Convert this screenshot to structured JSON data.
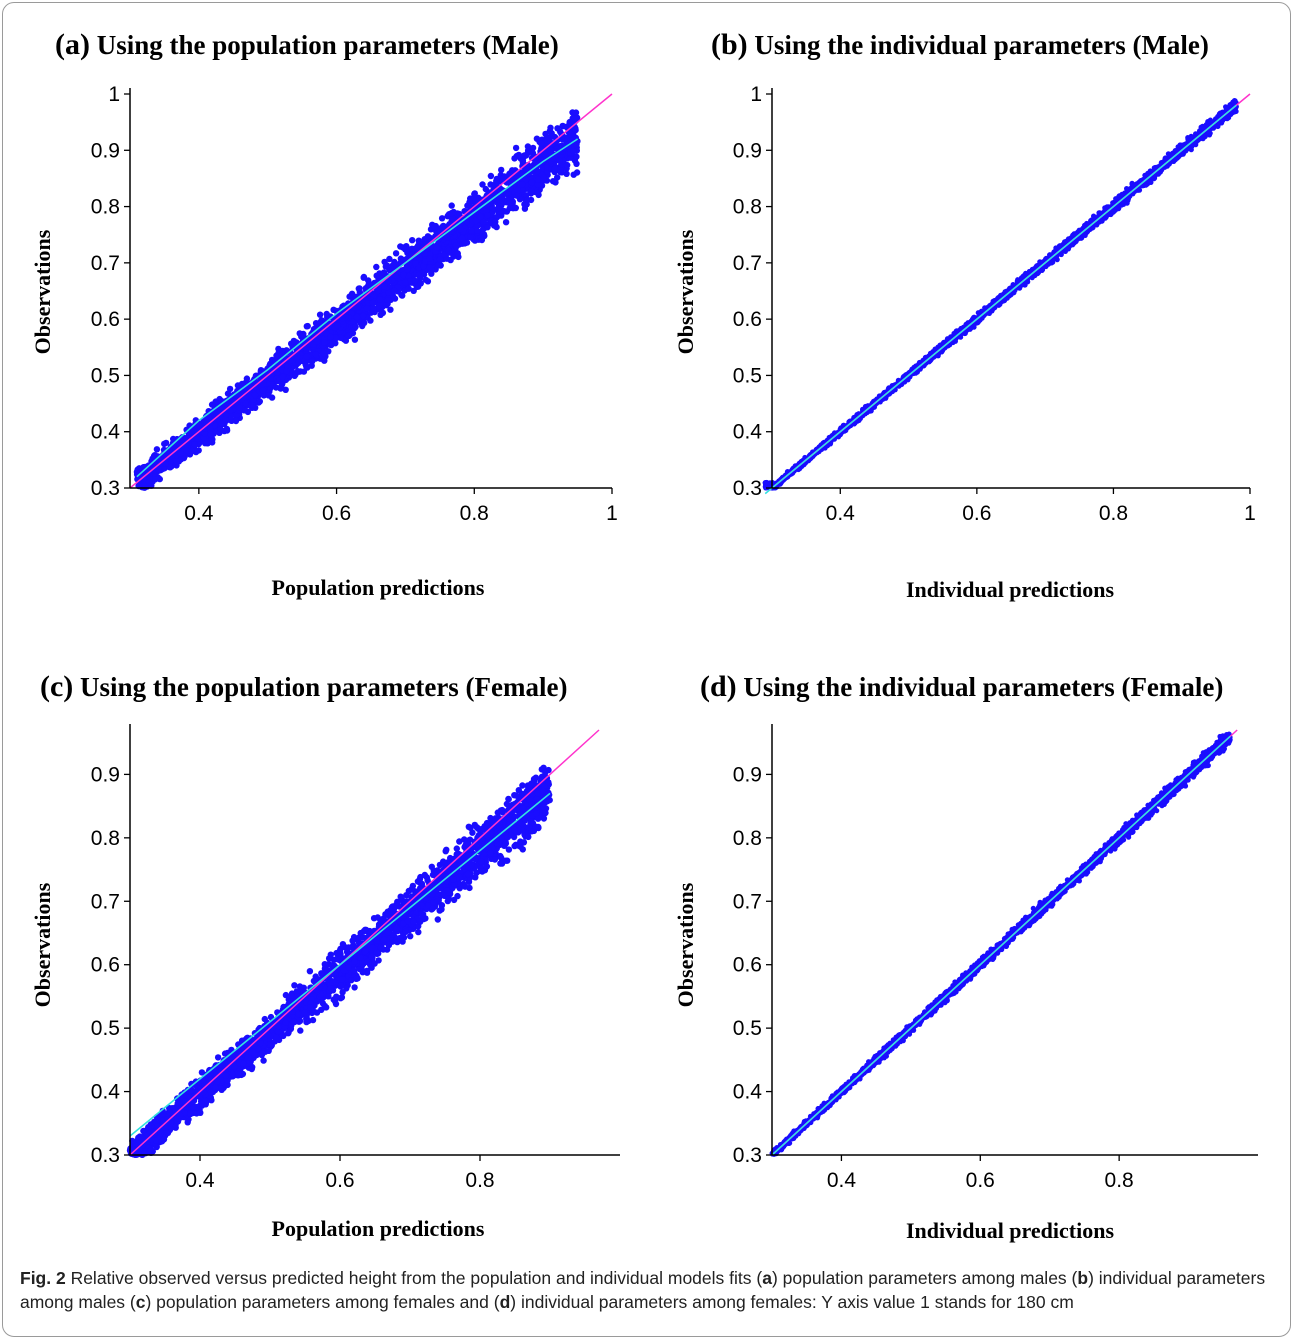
{
  "caption": {
    "fig_label": "Fig. 2",
    "segments": [
      {
        "t": " Relative observed versus predicted height from the population and individual models fits ("
      },
      {
        "t": "a",
        "b": true
      },
      {
        "t": ") population parameters among males ("
      },
      {
        "t": "b",
        "b": true
      },
      {
        "t": ") individual parameters among males ("
      },
      {
        "t": "c",
        "b": true
      },
      {
        "t": ") population parameters among females and ("
      },
      {
        "t": "d",
        "b": true
      },
      {
        "t": ") individual parameters among females: Y axis value 1 stands for 180 cm"
      }
    ]
  },
  "colors": {
    "points": "#1a0dff",
    "identity_line": "#ff33cc",
    "smooth_line": "#33e0e0",
    "axis": "#000000"
  },
  "chart_data": [
    {
      "id": "a",
      "type": "scatter",
      "label": "(a)",
      "title": "Using the population parameters (Male)",
      "xlabel": "Population predictions",
      "ylabel": "Observations",
      "xlim": [
        0.3,
        1.0
      ],
      "ylim": [
        0.3,
        1.0
      ],
      "xticks": [
        0.4,
        0.6,
        0.8,
        1
      ],
      "yticks": [
        0.3,
        0.4,
        0.5,
        0.6,
        0.7,
        0.8,
        0.9,
        1
      ],
      "series": [
        {
          "kind": "points",
          "x_range": [
            0.31,
            0.95
          ],
          "spread": 0.055
        },
        {
          "kind": "identity",
          "x": [
            0.3,
            1.0
          ],
          "y": [
            0.3,
            1.0
          ]
        },
        {
          "kind": "smooth",
          "x": [
            0.31,
            0.4,
            0.5,
            0.6,
            0.7,
            0.8,
            0.9,
            0.95
          ],
          "y": [
            0.32,
            0.42,
            0.51,
            0.61,
            0.7,
            0.79,
            0.88,
            0.92
          ]
        }
      ]
    },
    {
      "id": "b",
      "type": "scatter",
      "label": "(b)",
      "title": "Using the individual parameters (Male)",
      "xlabel": "Individual predictions",
      "ylabel": "Observations",
      "xlim": [
        0.3,
        1.0
      ],
      "ylim": [
        0.3,
        1.0
      ],
      "xticks": [
        0.4,
        0.6,
        0.8,
        1
      ],
      "yticks": [
        0.3,
        0.4,
        0.5,
        0.6,
        0.7,
        0.8,
        0.9,
        1
      ],
      "series": [
        {
          "kind": "points",
          "x_range": [
            0.29,
            0.98
          ],
          "spread": 0.012
        },
        {
          "kind": "identity",
          "x": [
            0.3,
            1.0
          ],
          "y": [
            0.3,
            1.0
          ]
        },
        {
          "kind": "smooth",
          "x": [
            0.29,
            0.5,
            0.7,
            0.98
          ],
          "y": [
            0.29,
            0.5,
            0.7,
            0.98
          ]
        }
      ]
    },
    {
      "id": "c",
      "type": "scatter",
      "label": "(c)",
      "title": "Using the population parameters (Female)",
      "xlabel": "Population predictions",
      "ylabel": "Observations",
      "xlim": [
        0.3,
        1.0
      ],
      "ylim": [
        0.3,
        0.97
      ],
      "xticks": [
        0.4,
        0.6,
        0.8
      ],
      "yticks": [
        0.3,
        0.4,
        0.5,
        0.6,
        0.7,
        0.8,
        0.9
      ],
      "series": [
        {
          "kind": "points",
          "x_range": [
            0.3,
            0.9
          ],
          "spread": 0.05
        },
        {
          "kind": "identity",
          "x": [
            0.3,
            1.0
          ],
          "y": [
            0.3,
            1.0
          ]
        },
        {
          "kind": "smooth",
          "x": [
            0.3,
            0.4,
            0.5,
            0.6,
            0.7,
            0.8,
            0.9
          ],
          "y": [
            0.33,
            0.42,
            0.51,
            0.6,
            0.69,
            0.78,
            0.87
          ]
        }
      ]
    },
    {
      "id": "d",
      "type": "scatter",
      "label": "(d)",
      "title": "Using the individual parameters (Female)",
      "xlabel": "Individual predictions",
      "ylabel": "Observations",
      "xlim": [
        0.3,
        1.0
      ],
      "ylim": [
        0.3,
        0.97
      ],
      "xticks": [
        0.4,
        0.6,
        0.8
      ],
      "yticks": [
        0.3,
        0.4,
        0.5,
        0.6,
        0.7,
        0.8,
        0.9
      ],
      "series": [
        {
          "kind": "points",
          "x_range": [
            0.3,
            0.96
          ],
          "spread": 0.012
        },
        {
          "kind": "identity",
          "x": [
            0.3,
            1.0
          ],
          "y": [
            0.3,
            1.0
          ]
        },
        {
          "kind": "smooth",
          "x": [
            0.3,
            0.6,
            0.96
          ],
          "y": [
            0.3,
            0.6,
            0.96
          ]
        }
      ]
    }
  ]
}
